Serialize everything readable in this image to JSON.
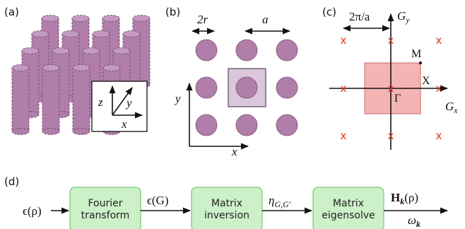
{
  "panels": {
    "a": {
      "label": "(a)",
      "axes": {
        "z": "z",
        "y": "y",
        "x": "x"
      }
    },
    "b": {
      "label": "(b)",
      "two_r": "2r",
      "a": "a",
      "x": "x",
      "y": "y"
    },
    "c": {
      "label": "(c)",
      "period": "2π/a",
      "gy_main": "G",
      "gy_sub": "y",
      "gx_main": "G",
      "gx_sub": "x",
      "points": {
        "m": "M",
        "x": "X",
        "gamma": "Γ"
      },
      "lattice_mark": "x"
    },
    "d": {
      "label": "(d)",
      "input": "ϵ(ρ)",
      "box1": [
        "Fourier",
        "transform"
      ],
      "edge1": "ϵ(G)",
      "box2": [
        "Matrix",
        "inversion"
      ],
      "edge2_main": "η",
      "edge2_sub": "G,G′",
      "box3": [
        "Matrix",
        "eigensolve"
      ],
      "out1_main": "H",
      "out1_sub": "k",
      "out1_tail": "(ρ)",
      "out2_main": "ω",
      "out2_sub": "k"
    }
  },
  "colors": {
    "rod_fill": "#b07ea8",
    "rod_top": "#c49ac0",
    "rod_stroke": "#7a5276",
    "cell_fill": "#dcc6dc",
    "bz_fill": "#f4b4b4",
    "bz_stroke": "#c96a6a",
    "box_fill": "#ccf0c8",
    "box_stroke": "#8cd088",
    "lattice_mark": "#e0302c"
  }
}
